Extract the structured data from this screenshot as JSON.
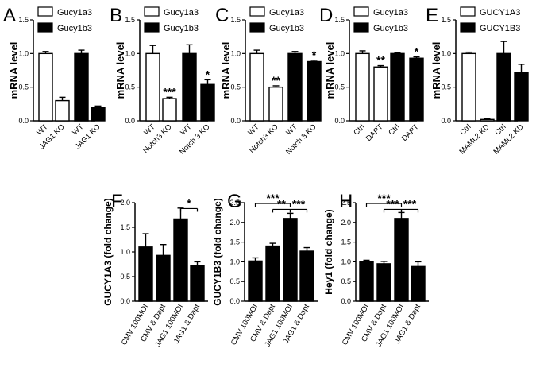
{
  "chart_data": [
    {
      "panel": "A",
      "type": "bar",
      "ylabel": "mRNA level",
      "ylim": [
        0,
        1.5
      ],
      "yticks": [
        "0.0",
        "0.5",
        "1.0",
        "1.5"
      ],
      "legend": [
        "Gucy1a3",
        "Gucy1b3"
      ],
      "categories": [
        "WT",
        "JAG1 KO",
        "WT",
        "JAG1 KO"
      ],
      "values": [
        1.0,
        0.3,
        1.0,
        0.2
      ],
      "errors": [
        0.03,
        0.05,
        0.05,
        0.02
      ],
      "fills": [
        "white",
        "white",
        "black",
        "black"
      ],
      "markers": [
        "",
        "",
        "",
        ""
      ]
    },
    {
      "panel": "B",
      "type": "bar",
      "ylabel": "mRNA level",
      "ylim": [
        0,
        1.5
      ],
      "yticks": [
        "0.0",
        "0.5",
        "1.0",
        "1.5"
      ],
      "legend": [
        "Gucy1a3",
        "Gucy1b3"
      ],
      "categories": [
        "WT",
        "Notch3 KO",
        "WT",
        "Notch 3 KO"
      ],
      "values": [
        1.0,
        0.33,
        1.0,
        0.54
      ],
      "errors": [
        0.12,
        0.02,
        0.13,
        0.07
      ],
      "fills": [
        "white",
        "white",
        "black",
        "black"
      ],
      "markers": [
        "",
        "***",
        "",
        "*"
      ]
    },
    {
      "panel": "C",
      "type": "bar",
      "ylabel": "mRNA level",
      "ylim": [
        0,
        1.5
      ],
      "yticks": [
        "0.0",
        "0.5",
        "1.0",
        "1.5"
      ],
      "legend": [
        "Gucy1a3",
        "Gucy1b3"
      ],
      "categories": [
        "WT",
        "Notch3 KO",
        "WT",
        "Notch 3 KO"
      ],
      "values": [
        1.0,
        0.5,
        1.0,
        0.88
      ],
      "errors": [
        0.05,
        0.02,
        0.03,
        0.02
      ],
      "fills": [
        "white",
        "white",
        "black",
        "black"
      ],
      "markers": [
        "",
        "**",
        "",
        "*"
      ]
    },
    {
      "panel": "D",
      "type": "bar",
      "ylabel": "mRNA level",
      "ylim": [
        0,
        1.5
      ],
      "yticks": [
        "0.0",
        "0.5",
        "1.0",
        "1.5"
      ],
      "legend": [
        "Gucy1a3",
        "Gucy1b3"
      ],
      "categories": [
        "Ctrl",
        "DAPT",
        "Ctrl",
        "DAPT"
      ],
      "values": [
        1.0,
        0.8,
        1.0,
        0.93
      ],
      "errors": [
        0.04,
        0.02,
        0.01,
        0.02
      ],
      "fills": [
        "white",
        "white",
        "black",
        "black"
      ],
      "markers": [
        "",
        "**",
        "",
        "*"
      ]
    },
    {
      "panel": "E",
      "type": "bar",
      "ylabel": "mRNA level",
      "ylim": [
        0,
        1.5
      ],
      "yticks": [
        "0.0",
        "0.5",
        "1.0",
        "1.5"
      ],
      "legend": [
        "GUCY1A3",
        "GUCY1B3"
      ],
      "categories": [
        "Ctrl",
        "MAML2 KD",
        "Ctrl",
        "MAML2 KD"
      ],
      "values": [
        1.0,
        0.02,
        1.0,
        0.72
      ],
      "errors": [
        0.02,
        0.01,
        0.18,
        0.12
      ],
      "fills": [
        "white",
        "white",
        "black",
        "black"
      ],
      "markers": [
        "",
        "",
        "",
        ""
      ]
    },
    {
      "panel": "F",
      "type": "bar",
      "ylabel": "GUCY1A3 (fold change)",
      "ylim": [
        0,
        2.0
      ],
      "yticks": [
        "0.0",
        "0.5",
        "1.0",
        "1.5",
        "2.0"
      ],
      "legend": [],
      "categories": [
        "CMV 100MOI",
        "CMV & Dapt",
        "JAG1 100MOI",
        "JAG1 & Dapt"
      ],
      "values": [
        1.1,
        0.93,
        1.67,
        0.72
      ],
      "errors": [
        0.27,
        0.22,
        0.22,
        0.08
      ],
      "fills": [
        "black",
        "black",
        "black",
        "black"
      ],
      "markers": [
        "",
        "",
        "",
        ""
      ],
      "brackets": [
        {
          "from": 2,
          "to": 3,
          "label": "*",
          "level": 1.88
        }
      ]
    },
    {
      "panel": "G",
      "type": "bar",
      "ylabel": "GUCY1B3 (fold change)",
      "ylim": [
        0,
        2.5
      ],
      "yticks": [
        "0.0",
        "0.5",
        "1.0",
        "1.5",
        "2.0",
        "2.5"
      ],
      "legend": [],
      "categories": [
        "CMV 100MOI",
        "CMV & Dapt",
        "JAG1 100MOI",
        "JAG1 & Dapt"
      ],
      "values": [
        1.02,
        1.4,
        2.1,
        1.27
      ],
      "errors": [
        0.08,
        0.07,
        0.13,
        0.09
      ],
      "fills": [
        "black",
        "black",
        "black",
        "black"
      ],
      "markers": [
        "",
        "",
        "",
        ""
      ],
      "brackets": [
        {
          "from": 0,
          "to": 2,
          "label": "***",
          "level": 2.48
        },
        {
          "from": 1,
          "to": 2,
          "label": "**",
          "level": 2.33
        },
        {
          "from": 2,
          "to": 3,
          "label": "***",
          "level": 2.33
        }
      ]
    },
    {
      "panel": "H",
      "type": "bar",
      "ylabel": "Hey1 (fold change)",
      "ylim": [
        0,
        2.5
      ],
      "yticks": [
        "0.0",
        "0.5",
        "1.0",
        "1.5",
        "2.0",
        "2.5"
      ],
      "legend": [],
      "categories": [
        "CMV 100MOI",
        "CMV & Dapt",
        "JAG1 100MOI",
        "JAG1 & Dapt"
      ],
      "values": [
        1.0,
        0.95,
        2.1,
        0.88
      ],
      "errors": [
        0.04,
        0.06,
        0.15,
        0.12
      ],
      "fills": [
        "black",
        "black",
        "black",
        "black"
      ],
      "markers": [
        "",
        "",
        "",
        ""
      ],
      "brackets": [
        {
          "from": 0,
          "to": 2,
          "label": "***",
          "level": 2.48
        },
        {
          "from": 1,
          "to": 2,
          "label": "***",
          "level": 2.33
        },
        {
          "from": 2,
          "to": 3,
          "label": "***",
          "level": 2.33
        }
      ]
    }
  ]
}
